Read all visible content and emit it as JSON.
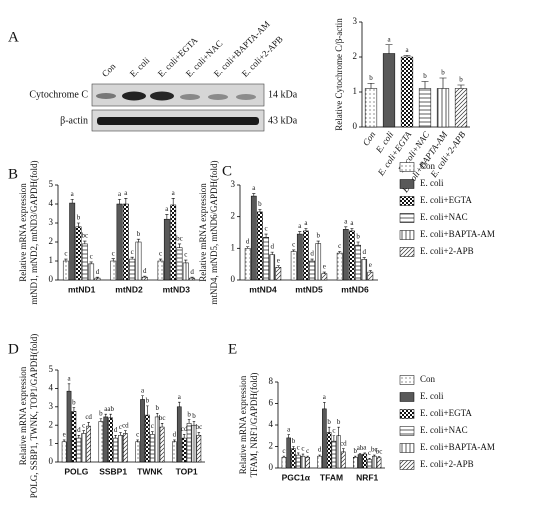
{
  "panel_labels": [
    "A",
    "B",
    "C",
    "D",
    "E"
  ],
  "blot": {
    "lanes": [
      "Con",
      "E. coli",
      "E. coli+EGTA",
      "E. coli+NAC",
      "E. coli+BAPTA-AM",
      "E. coli+2-APB"
    ],
    "rows": [
      {
        "label": "Cytochrome C",
        "size": "14 kDa"
      },
      {
        "label": "β-actin",
        "size": "43 kDa"
      }
    ]
  },
  "chart_data": [
    {
      "type": "bar",
      "ylabel": "Relative Cytochrome C/β-actin",
      "categories": [
        "Con",
        "E. coli",
        "E. coli+EGTA",
        "E. coli+NAC",
        "E. coli+BAPTA-AM",
        "E. coli+2-APB"
      ],
      "values": [
        1.1,
        2.1,
        2.0,
        1.1,
        1.1,
        1.1
      ],
      "errors": [
        0.15,
        0.25,
        0.05,
        0.2,
        0.3,
        0.1
      ],
      "letters": [
        "b",
        "a",
        "a",
        "b",
        "b",
        "b"
      ],
      "patterns": [
        "dots",
        "solid",
        "checker",
        "hlines",
        "vlines",
        "diag"
      ],
      "colors": [
        "#444444",
        "#595959",
        "#111111",
        "#333333",
        "#333333",
        "#333333"
      ],
      "ylim": [
        0,
        3
      ],
      "yticks": [
        0,
        1,
        2,
        3
      ]
    },
    {
      "type": "grouped-bar",
      "ylabel": [
        "Relative mRNA expression",
        "mtND1, mtND2, mtND3/GAPDH(fold)"
      ],
      "categories": [
        "mtND1",
        "mtND2",
        "mtND3"
      ],
      "ylim": [
        0,
        5
      ],
      "yticks": [
        0,
        1,
        2,
        3,
        4,
        5
      ],
      "series": [
        {
          "pattern": "dots",
          "color": "#444444",
          "values": [
            1.0,
            1.0,
            1.0
          ],
          "errors": [
            0.1,
            0.12,
            0.1
          ],
          "letters": [
            "c",
            "c",
            "c"
          ]
        },
        {
          "pattern": "solid",
          "color": "#595959",
          "values": [
            4.05,
            4.0,
            3.2
          ],
          "errors": [
            0.2,
            0.25,
            0.25
          ],
          "letters": [
            "a",
            "a",
            "a"
          ]
        },
        {
          "pattern": "checker",
          "color": "#111111",
          "values": [
            2.8,
            4.0,
            3.95
          ],
          "errors": [
            0.2,
            0.3,
            0.35
          ],
          "letters": [
            "b",
            "a",
            "a"
          ]
        },
        {
          "pattern": "hlines",
          "color": "#333333",
          "values": [
            1.9,
            1.1,
            1.7
          ],
          "errors": [
            0.15,
            0.1,
            0.2
          ],
          "letters": [
            "bc",
            "c",
            "bc"
          ]
        },
        {
          "pattern": "vlines",
          "color": "#333333",
          "values": [
            0.85,
            2.0,
            0.9
          ],
          "errors": [
            0.1,
            0.15,
            0.15
          ],
          "letters": [
            "c",
            "b",
            "c"
          ]
        },
        {
          "pattern": "diag",
          "color": "#333333",
          "values": [
            0.1,
            0.15,
            0.1
          ],
          "errors": [
            0.05,
            0.05,
            0.05
          ],
          "letters": [
            "d",
            "d",
            "d"
          ]
        }
      ]
    },
    {
      "type": "grouped-bar",
      "ylabel": [
        "Relative mRNA expression",
        "mtND4, mtND5, mtND6/GAPDH(fold)"
      ],
      "categories": [
        "mtND4",
        "mtND5",
        "mtND6"
      ],
      "ylim": [
        0,
        3
      ],
      "yticks": [
        0,
        1,
        2,
        3
      ],
      "legend": "right",
      "series": [
        {
          "name": "Con",
          "pattern": "dots",
          "color": "#444444",
          "values": [
            1.0,
            0.9,
            0.85
          ],
          "errors": [
            0.05,
            0.05,
            0.05
          ],
          "letters": [
            "d",
            "c",
            "c"
          ]
        },
        {
          "name": "E. coli",
          "pattern": "solid",
          "color": "#595959",
          "values": [
            2.65,
            1.45,
            1.6
          ],
          "errors": [
            0.08,
            0.08,
            0.08
          ],
          "letters": [
            "a",
            "a",
            "a"
          ]
        },
        {
          "name": "E. coli+EGTA",
          "pattern": "checker",
          "color": "#111111",
          "values": [
            2.15,
            1.55,
            1.55
          ],
          "errors": [
            0.08,
            0.08,
            0.08
          ],
          "letters": [
            "b",
            "a",
            "a"
          ]
        },
        {
          "name": "E. coli+NAC",
          "pattern": "hlines",
          "color": "#333333",
          "values": [
            1.35,
            0.6,
            1.1
          ],
          "errors": [
            0.1,
            0.06,
            0.1
          ],
          "letters": [
            "c",
            "d",
            "b"
          ]
        },
        {
          "name": "E. coli+BAPTA-AM",
          "pattern": "vlines",
          "color": "#333333",
          "values": [
            0.8,
            1.15,
            0.65
          ],
          "errors": [
            0.08,
            0.08,
            0.06
          ],
          "letters": [
            "d",
            "b",
            "d"
          ]
        },
        {
          "name": "E. coli+2-APB",
          "pattern": "diag",
          "color": "#333333",
          "values": [
            0.4,
            0.2,
            0.25
          ],
          "errors": [
            0.05,
            0.05,
            0.05
          ],
          "letters": [
            "e",
            "e",
            "e"
          ]
        }
      ]
    },
    {
      "type": "grouped-bar",
      "ylabel": [
        "Relative mRNA expression",
        "POLG, SSBP1, TWNK, TOP1/GAPDH(fold)"
      ],
      "categories": [
        "POLG",
        "SSBP1",
        "TWNK",
        "TOP1"
      ],
      "ylim": [
        0,
        5
      ],
      "yticks": [
        0,
        1,
        2,
        3,
        4,
        5
      ],
      "series": [
        {
          "pattern": "dots",
          "color": "#444444",
          "values": [
            1.1,
            2.2,
            1.1,
            1.1
          ],
          "errors": [
            0.1,
            0.15,
            0.1,
            0.1
          ],
          "letters": [
            "e",
            "b",
            "c",
            "d"
          ]
        },
        {
          "pattern": "solid",
          "color": "#595959",
          "values": [
            3.85,
            2.45,
            3.4,
            3.0
          ],
          "errors": [
            0.4,
            0.15,
            0.2,
            0.25
          ],
          "letters": [
            "a",
            "a",
            "a",
            "a"
          ]
        },
        {
          "pattern": "checker",
          "color": "#111111",
          "values": [
            2.75,
            2.4,
            2.55,
            1.3
          ],
          "errors": [
            0.2,
            0.2,
            0.5,
            0.2
          ],
          "letters": [
            "b",
            "ab",
            "b",
            "cd"
          ]
        },
        {
          "pattern": "hlines",
          "color": "#333333",
          "values": [
            1.3,
            1.3,
            1.5,
            2.1
          ],
          "errors": [
            0.15,
            0.15,
            0.15,
            0.2
          ],
          "letters": [
            "d",
            "d",
            "c",
            "b"
          ]
        },
        {
          "pattern": "vlines",
          "color": "#333333",
          "values": [
            1.55,
            1.45,
            2.45,
            2.0
          ],
          "errors": [
            0.15,
            0.15,
            0.2,
            0.2
          ],
          "letters": [
            "c",
            "c",
            "b",
            "b"
          ]
        },
        {
          "pattern": "diag",
          "color": "#333333",
          "values": [
            1.95,
            1.55,
            1.9,
            1.45
          ],
          "errors": [
            0.2,
            0.15,
            0.2,
            0.15
          ],
          "letters": [
            "cd",
            "cd",
            "bc",
            "bc"
          ]
        }
      ]
    },
    {
      "type": "grouped-bar",
      "ylabel": [
        "Relative mRNA expression",
        "TFAM, NRF1/GAPDH(fold)"
      ],
      "categories": [
        "PGC1α",
        "TFAM",
        "NRF1"
      ],
      "ylim": [
        0,
        8
      ],
      "yticks": [
        0,
        2,
        4,
        6,
        8
      ],
      "legend": "right",
      "series": [
        {
          "name": "Con",
          "pattern": "dots",
          "color": "#444444",
          "values": [
            1.0,
            1.1,
            1.0
          ],
          "errors": [
            0.1,
            0.1,
            0.1
          ],
          "letters": [
            "c",
            "d",
            "b"
          ]
        },
        {
          "name": "E. coli",
          "pattern": "solid",
          "color": "#595959",
          "values": [
            2.8,
            5.5,
            1.25
          ],
          "errors": [
            0.3,
            0.6,
            0.1
          ],
          "letters": [
            "a",
            "a",
            "ab"
          ]
        },
        {
          "name": "E. coli+EGTA",
          "pattern": "checker",
          "color": "#111111",
          "values": [
            1.8,
            3.3,
            1.3
          ],
          "errors": [
            0.2,
            0.5,
            0.1
          ],
          "letters": [
            "b",
            "b",
            "a"
          ]
        },
        {
          "name": "E. coli+NAC",
          "pattern": "hlines",
          "color": "#333333",
          "values": [
            1.2,
            2.5,
            0.8
          ],
          "errors": [
            0.2,
            0.5,
            0.1
          ],
          "letters": [
            "c",
            "c",
            "c"
          ]
        },
        {
          "name": "E. coli+BAPTA-AM",
          "pattern": "vlines",
          "color": "#333333",
          "values": [
            1.1,
            3.0,
            1.1
          ],
          "errors": [
            0.2,
            0.8,
            0.1
          ],
          "letters": [
            "c",
            "b",
            "bc"
          ]
        },
        {
          "name": "E. coli+2-APB",
          "pattern": "diag",
          "color": "#333333",
          "values": [
            1.0,
            1.5,
            0.95
          ],
          "errors": [
            0.1,
            0.3,
            0.1
          ],
          "letters": [
            "c",
            "cd",
            "bc"
          ]
        }
      ]
    }
  ]
}
